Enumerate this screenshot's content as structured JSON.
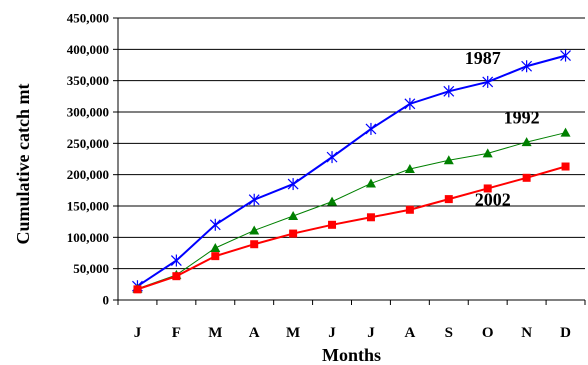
{
  "chart_data": {
    "type": "line",
    "title": "",
    "xlabel": "Months",
    "ylabel": "Cumulative catch mt",
    "categories": [
      "J",
      "F",
      "M",
      "A",
      "M",
      "J",
      "J",
      "A",
      "S",
      "O",
      "N",
      "D"
    ],
    "ylim": [
      0,
      450000
    ],
    "yticks": [
      0,
      50000,
      100000,
      150000,
      200000,
      250000,
      300000,
      350000,
      400000,
      450000
    ],
    "ytick_labels": [
      "0",
      "50,000",
      "100,000",
      "150,000",
      "200,000",
      "250,000",
      "300,000",
      "350,000",
      "400,000",
      "450,000"
    ],
    "grid": true,
    "legend": "none",
    "series": [
      {
        "name": "1987",
        "color": "#0000ff",
        "marker": "asterisk",
        "values": [
          22000,
          63000,
          120000,
          160000,
          185000,
          228000,
          273000,
          313000,
          333000,
          348000,
          373000,
          390000
        ]
      },
      {
        "name": "1992",
        "color": "#008000",
        "marker": "triangle",
        "values": [
          18000,
          40000,
          83000,
          111000,
          134000,
          157000,
          186000,
          209000,
          223000,
          234000,
          252000,
          267000
        ]
      },
      {
        "name": "2002",
        "color": "#ff0000",
        "marker": "square",
        "values": [
          17000,
          38000,
          70000,
          89000,
          106000,
          120000,
          132000,
          144000,
          161000,
          178000,
          195000,
          213000
        ]
      }
    ]
  }
}
